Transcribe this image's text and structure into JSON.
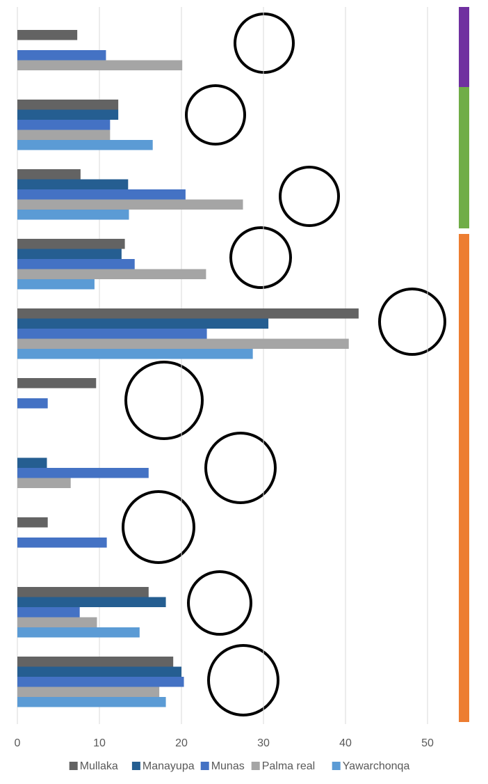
{
  "chart_data": {
    "type": "bar",
    "orientation": "horizontal",
    "categories": [
      null,
      null,
      null,
      null,
      null,
      null,
      null,
      null,
      null,
      null
    ],
    "series": [
      {
        "name": "Mullaka",
        "color": "#636363",
        "values": [
          7.3,
          12.3,
          7.7,
          13.1,
          41.6,
          9.6,
          null,
          3.7,
          16,
          19
        ]
      },
      {
        "name": "Manayupa",
        "color": "#255e91",
        "values": [
          null,
          12.3,
          13.5,
          12.7,
          30.6,
          null,
          3.6,
          null,
          18.1,
          20
        ]
      },
      {
        "name": "Munas",
        "color": "#4472c4",
        "values": [
          10.8,
          11.3,
          20.5,
          14.3,
          23.1,
          3.7,
          16,
          10.9,
          7.6,
          20.3
        ]
      },
      {
        "name": "Palma real",
        "color": "#a5a5a5",
        "values": [
          20.1,
          11.3,
          27.5,
          23,
          40.4,
          null,
          6.5,
          null,
          9.7,
          17.3
        ]
      },
      {
        "name": "Yawarchonqa",
        "color": "#5b9bd5",
        "values": [
          null,
          16.5,
          13.6,
          9.4,
          28.7,
          null,
          null,
          null,
          14.9,
          18.1
        ]
      }
    ],
    "xlim": [
      0,
      52
    ],
    "xticks": [
      0,
      10,
      20,
      30,
      40,
      50
    ],
    "grid": true,
    "legend": "bottom"
  }
}
